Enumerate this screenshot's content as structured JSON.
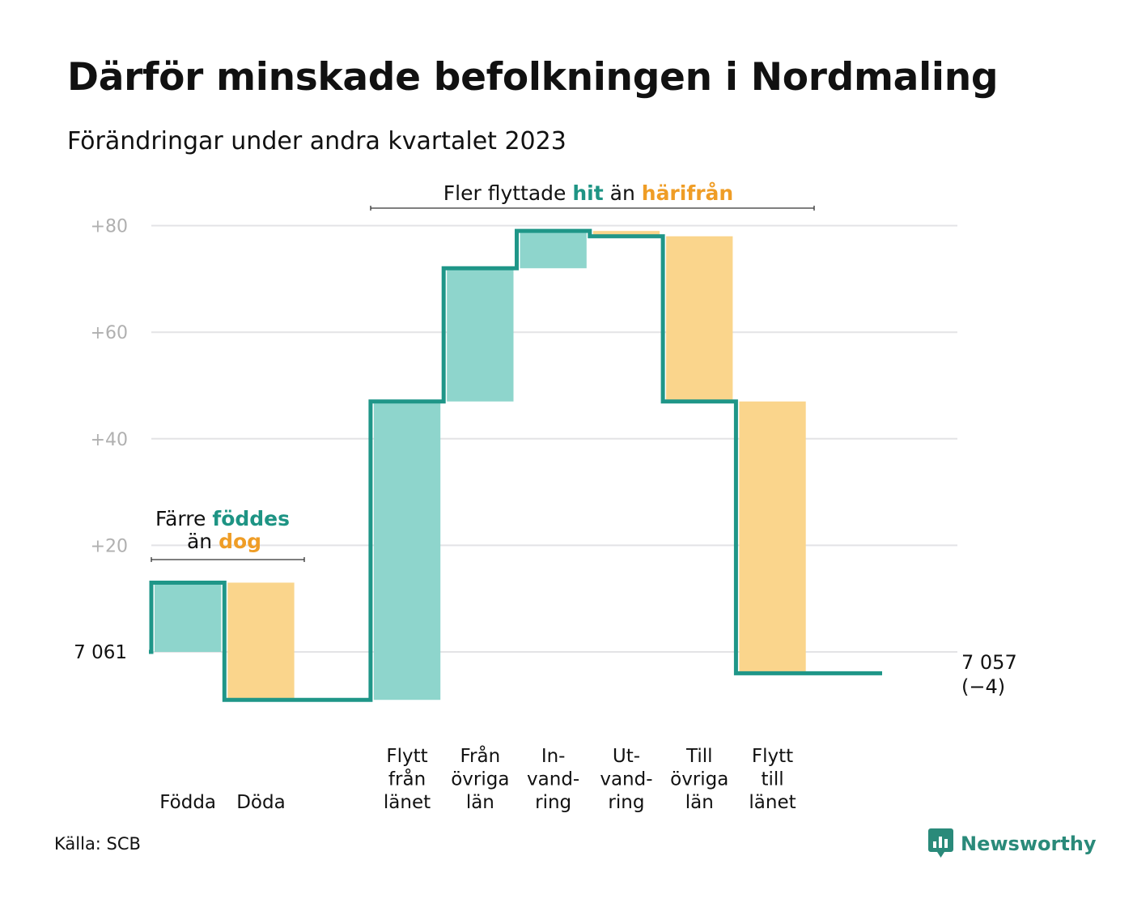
{
  "title": "Därför minskade befolkningen i Nordmaling",
  "subtitle": "Förändringar under andra kvartalet 2023",
  "source": "Källa: SCB",
  "brand": "Newsworthy",
  "colors": {
    "teal_line": "#1f9688",
    "teal_fill": "#8ed5cc",
    "orange_fill": "#fad58c",
    "orange_text": "#ef9d26",
    "teal_text": "#1e9484",
    "grid": "#e3e3e6",
    "tick_text": "#b0b0b0"
  },
  "annotations": {
    "births": {
      "line1_prefix": "Färre ",
      "line1_highlight": "föddes",
      "line2_prefix": "än ",
      "line2_highlight": "dog"
    },
    "migration": {
      "prefix": "Fler flyttade ",
      "highlight1": "hit",
      "middle": " än ",
      "highlight2": "härifrån"
    }
  },
  "chart_data": {
    "type": "waterfall",
    "title": "Därför minskade befolkningen i Nordmaling",
    "subtitle": "Förändringar under andra kvartalet 2023",
    "start_label": "7  061",
    "end_label_line1": "7 057",
    "end_label_line2": "(−4)",
    "start_population": 7061,
    "end_population": 7057,
    "y_axis": {
      "range": [
        -10,
        80
      ],
      "ticks": [
        20,
        40,
        60,
        80
      ],
      "tick_labels": [
        "+20",
        "+40",
        "+60",
        "+80"
      ],
      "grid": true
    },
    "steps": [
      {
        "label": [
          "Födda"
        ],
        "change": 13,
        "direction": "in"
      },
      {
        "label": [
          "Döda"
        ],
        "change": -22,
        "direction": "out"
      },
      {
        "label": [],
        "change": 0,
        "direction": "none"
      },
      {
        "label": [
          "Flytt",
          "från",
          "länet"
        ],
        "change": 56,
        "direction": "in"
      },
      {
        "label": [
          "Från",
          "övriga",
          "län"
        ],
        "change": 25,
        "direction": "in"
      },
      {
        "label": [
          "In-",
          "vand-",
          "ring"
        ],
        "change": 7,
        "direction": "in"
      },
      {
        "label": [
          "Ut-",
          "vand-",
          "ring"
        ],
        "change": -1,
        "direction": "out"
      },
      {
        "label": [
          "Till",
          "övriga",
          "län"
        ],
        "change": -31,
        "direction": "out"
      },
      {
        "label": [
          "Flytt",
          "till",
          "länet"
        ],
        "change": -51,
        "direction": "out"
      },
      {
        "label": [],
        "change": 0,
        "direction": "none"
      }
    ]
  }
}
